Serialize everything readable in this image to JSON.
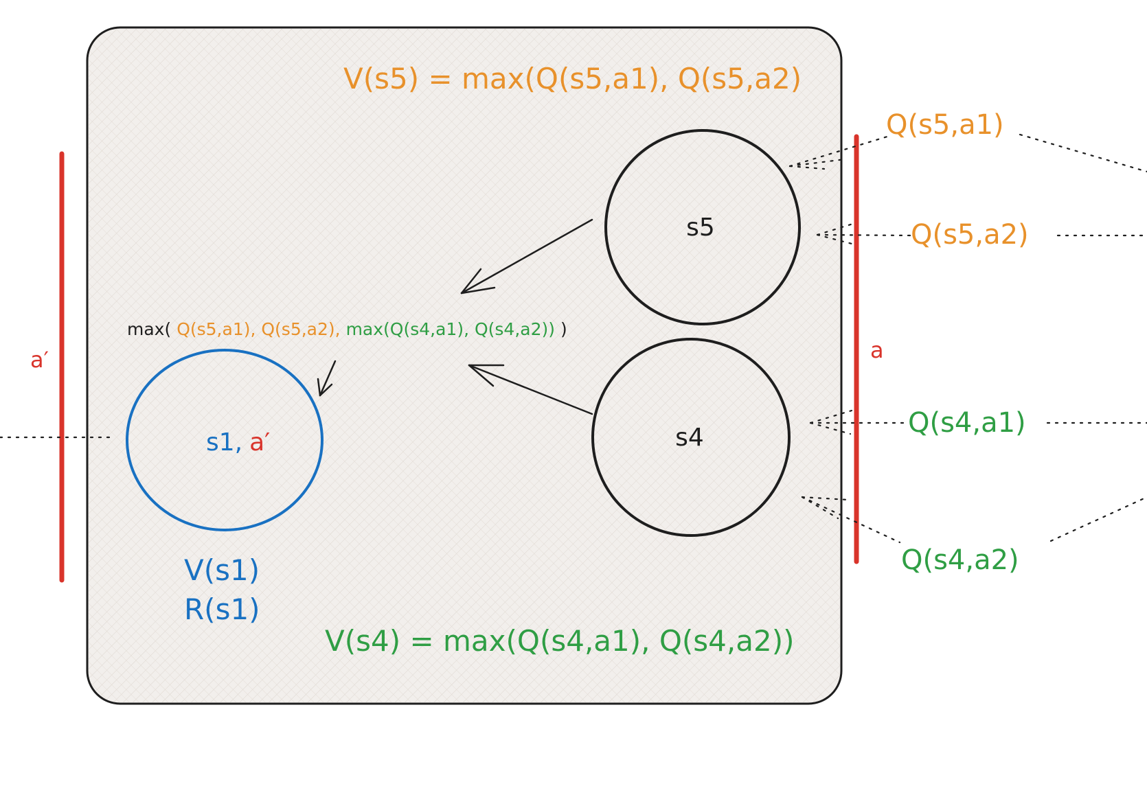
{
  "colors": {
    "orange": "#e8912b",
    "green": "#2f9e44",
    "blue": "#1971c2",
    "red": "#d9342b",
    "black": "#1e1e1e",
    "box_fill": "#f2efec",
    "hatch": "#d9d2cb"
  },
  "equations": {
    "v_s5": "V(s5) = max(Q(s5,a1), Q(s5,a2)",
    "v_s4": "V(s4) = max(Q(s4,a1), Q(s4,a2))",
    "combined": {
      "prefix": "max(",
      "q_s5_a1": "Q(s5,a1),",
      "q_s5_a2": "Q(s5,a2),",
      "inner_max": "max(Q(s4,a1), Q(s4,a2))",
      "suffix": ")"
    }
  },
  "states": {
    "s5": "s5",
    "s4": "s4",
    "s1": {
      "name": "s1,",
      "action": "a′"
    }
  },
  "s1_values": {
    "value": "V(s1)",
    "reward": "R(s1)"
  },
  "q_labels": {
    "s5_a1": "Q(s5,a1)",
    "s5_a2": "Q(s5,a2)",
    "s4_a1": "Q(s4,a1)",
    "s4_a2": "Q(s4,a2)"
  },
  "action_bars": {
    "left": "a′",
    "right": "a"
  }
}
